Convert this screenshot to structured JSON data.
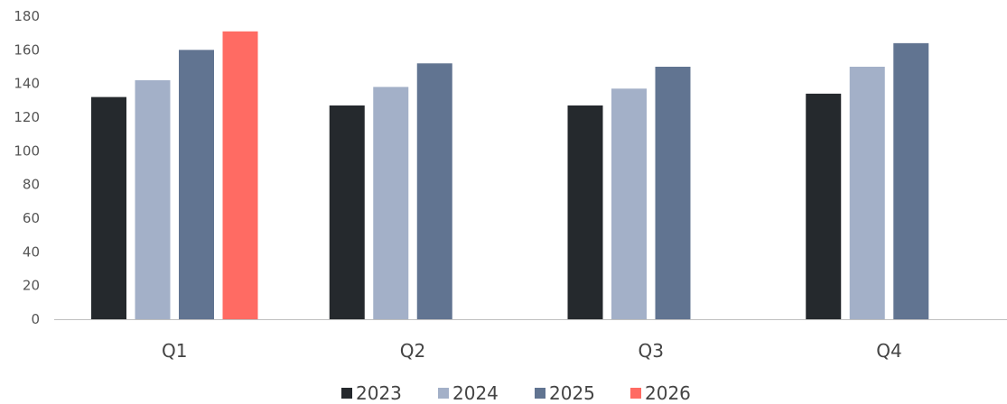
{
  "chart_data": {
    "type": "bar",
    "title": "",
    "xlabel": "",
    "ylabel": "",
    "ylim": [
      0,
      180
    ],
    "yticks": [
      "0",
      "20",
      "40",
      "60",
      "80",
      "100",
      "120",
      "140",
      "160",
      "180"
    ],
    "grid": false,
    "legend_position": "bottom",
    "categories": [
      "Q1",
      "Q2",
      "Q3",
      "Q4"
    ],
    "series": [
      {
        "name": "2023",
        "color": "#25292d",
        "values": [
          132,
          127,
          127,
          134
        ]
      },
      {
        "name": "2024",
        "color": "#a3b0c8",
        "values": [
          142,
          138,
          137,
          150
        ]
      },
      {
        "name": "2025",
        "color": "#617491",
        "values": [
          160,
          152,
          150,
          164
        ]
      },
      {
        "name": "2026",
        "color": "#ff6b63",
        "values": [
          171,
          null,
          null,
          null
        ]
      }
    ]
  }
}
